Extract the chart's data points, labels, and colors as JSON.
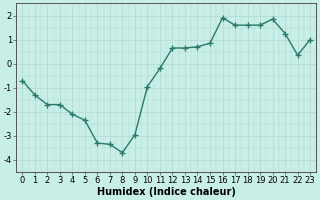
{
  "x": [
    0,
    1,
    2,
    3,
    4,
    5,
    6,
    7,
    8,
    9,
    10,
    11,
    12,
    13,
    14,
    15,
    16,
    17,
    18,
    19,
    20,
    21,
    22,
    23
  ],
  "y": [
    -0.7,
    -1.3,
    -1.7,
    -1.7,
    -2.1,
    -2.35,
    -3.3,
    -3.35,
    -3.7,
    -2.95,
    -0.95,
    -0.2,
    0.65,
    0.65,
    0.7,
    0.85,
    1.9,
    1.6,
    1.6,
    1.6,
    1.85,
    1.25,
    0.35,
    1.0
  ],
  "line_color": "#2a7a6a",
  "marker": "+",
  "marker_size": 4,
  "background_color": "#c8eee8",
  "grid_color": "#b0d8d0",
  "xlabel": "Humidex (Indice chaleur)",
  "xlim": [
    -0.5,
    23.5
  ],
  "ylim": [
    -4.5,
    2.5
  ],
  "yticks": [
    -4,
    -3,
    -2,
    -1,
    0,
    1,
    2
  ],
  "xticks": [
    0,
    1,
    2,
    3,
    4,
    5,
    6,
    7,
    8,
    9,
    10,
    11,
    12,
    13,
    14,
    15,
    16,
    17,
    18,
    19,
    20,
    21,
    22,
    23
  ],
  "label_fontsize": 7,
  "tick_fontsize": 6,
  "linewidth": 1.0
}
